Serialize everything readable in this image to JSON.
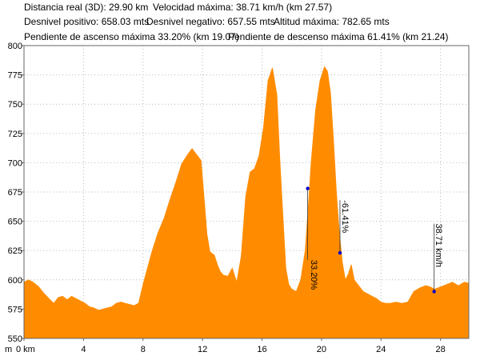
{
  "stats": {
    "distance": "Distancia real (3D): 29.90 km",
    "max_speed": "Velocidad máxima: 38.71 km/h (km 27.57)",
    "gain": "Desnivel positivo: 658.03 mts",
    "loss": "Desnivel negativo: 657.55 mts",
    "max_alt": "Altitud máxima: 782.65 mts",
    "max_ascent": "Pendiente de ascenso máxima 33.20% (km 19.07)",
    "max_descent": "Pendiente de descenso máxima 61.41% (km 21.24)"
  },
  "chart_data": {
    "type": "area",
    "title": "",
    "xlabel": "km",
    "ylabel": "m",
    "x_unit_label": "m",
    "xlim": [
      0,
      29.9
    ],
    "ylim": [
      550,
      800
    ],
    "x_ticks": [
      0,
      4,
      8,
      12,
      16,
      20,
      24,
      28
    ],
    "x_tick_labels": [
      "0 km",
      "4",
      "8",
      "12",
      "16",
      "20",
      "24",
      "28"
    ],
    "y_ticks": [
      550,
      575,
      600,
      625,
      650,
      675,
      700,
      725,
      750,
      775,
      800
    ],
    "grid": true,
    "fill_color": "#FF8C00",
    "marker_color": "#0000CC",
    "series": [
      {
        "x": [
          0,
          0.3,
          0.6,
          1.0,
          1.3,
          1.6,
          2.0,
          2.3,
          2.6,
          2.9,
          3.2,
          3.5,
          3.8,
          4.1,
          4.4,
          4.7,
          5.0,
          5.3,
          5.6,
          5.9,
          6.2,
          6.5,
          6.8,
          7.1,
          7.4,
          7.7,
          8.0,
          8.3,
          8.6,
          9.0,
          9.4,
          9.8,
          10.2,
          10.6,
          11.0,
          11.3,
          11.6,
          11.9,
          12.1,
          12.3,
          12.5,
          12.8,
          13.0,
          13.2,
          13.4,
          13.7,
          14.0,
          14.3,
          14.6,
          14.9,
          15.2,
          15.5,
          15.8,
          16.1,
          16.4,
          16.7,
          17.0,
          17.2,
          17.4,
          17.6,
          17.8,
          18.0,
          18.3,
          18.6,
          18.9,
          19.1,
          19.3,
          19.6,
          19.9,
          20.2,
          20.4,
          20.6,
          20.8,
          21.0,
          21.2,
          21.4,
          21.6,
          21.8,
          22.0,
          22.2,
          22.5,
          22.8,
          23.1,
          23.4,
          23.7,
          24.0,
          24.3,
          24.6,
          25.0,
          25.4,
          25.8,
          26.2,
          26.6,
          27.0,
          27.3,
          27.6,
          28.0,
          28.4,
          28.8,
          29.2,
          29.6,
          29.9
        ],
        "y": [
          598,
          600,
          598,
          594,
          589,
          585,
          580,
          585,
          586,
          583,
          586,
          584,
          582,
          580,
          577,
          576,
          574,
          575,
          576,
          577,
          580,
          581,
          580,
          579,
          578,
          580,
          596,
          610,
          624,
          640,
          652,
          668,
          683,
          699,
          707,
          712,
          707,
          702,
          671,
          639,
          624,
          621,
          613,
          607,
          604,
          603,
          610,
          598,
          620,
          671,
          692,
          695,
          706,
          730,
          770,
          781,
          758,
          703,
          655,
          610,
          596,
          592,
          590,
          600,
          625,
          660,
          700,
          745,
          770,
          782,
          778,
          760,
          720,
          675,
          640,
          615,
          600,
          605,
          613,
          600,
          595,
          590,
          588,
          586,
          584,
          581,
          580,
          580,
          581,
          580,
          581,
          590,
          593,
          595,
          594,
          592,
          594,
          596,
          598,
          595,
          598,
          597
        ]
      }
    ],
    "annotations": [
      {
        "text": "33.20%",
        "x": 19.07,
        "y": 678,
        "label_x": 19.3,
        "label_y": 617,
        "rotation": 90
      },
      {
        "text": "-61.41%",
        "x": 21.24,
        "y": 623,
        "label_x": 21.4,
        "label_y": 668,
        "rotation": 90
      },
      {
        "text": "38.71 km/h",
        "x": 27.57,
        "y": 590,
        "label_x": 27.7,
        "label_y": 648,
        "rotation": 90
      }
    ]
  }
}
